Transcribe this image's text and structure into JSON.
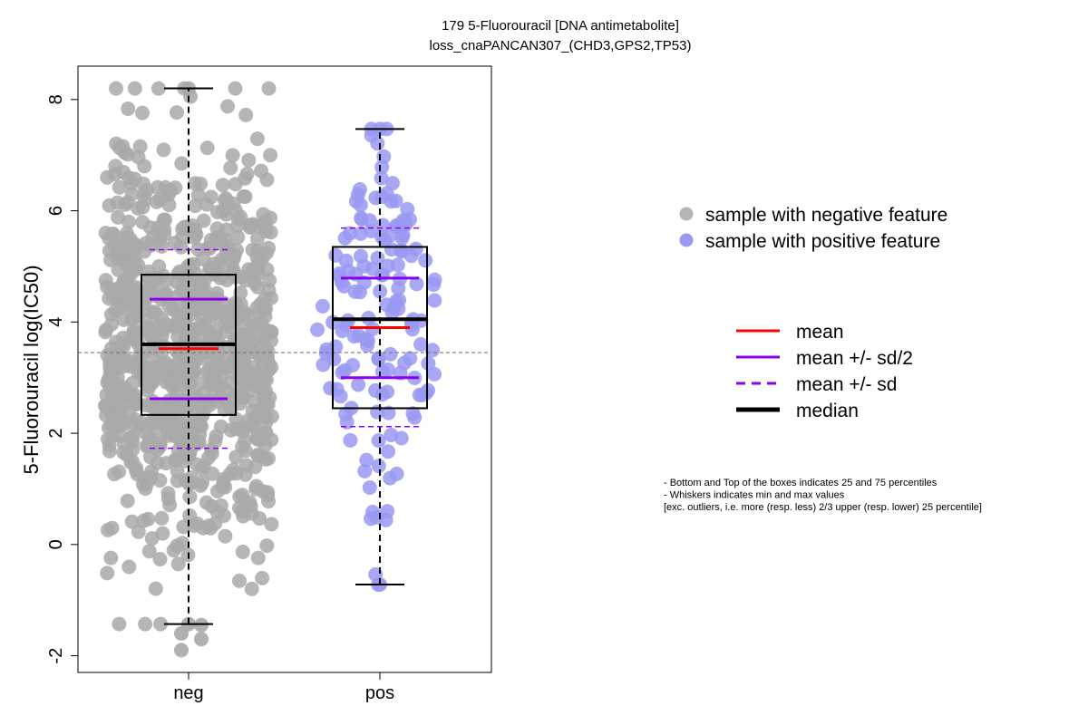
{
  "chart_data": {
    "type": "boxplot-beeswarm",
    "title": "179 5-Fluorouracil [DNA antimetabolite]",
    "subtitle": "loss_cnaPANCAN307_(CHD3,GPS2,TP53)",
    "xlabel": "",
    "ylabel": "5-Fluorouracil log(IC50)",
    "categories": [
      "neg",
      "pos"
    ],
    "ylim": [
      -2.3,
      8.6
    ],
    "yticks": [
      -2,
      0,
      2,
      4,
      6,
      8
    ],
    "ytick_labels": [
      "-2",
      "0",
      "2",
      "4",
      "6",
      "8"
    ],
    "overall_mean": 3.45,
    "groups": [
      {
        "name": "neg",
        "point_color": "#a9a9a9",
        "box_q1": 2.33,
        "box_q3": 4.85,
        "median": 3.6,
        "mean": 3.52,
        "mean_plus_half_sd": 4.41,
        "mean_minus_half_sd": 2.62,
        "mean_plus_sd": 5.3,
        "mean_minus_sd": 1.73,
        "whisker_low": -1.43,
        "whisker_high": 8.2,
        "n_points": 900,
        "outliers": [
          -1.6,
          -1.7,
          -1.9,
          -1.45
        ]
      },
      {
        "name": "pos",
        "point_color": "#9999f2",
        "box_q1": 2.45,
        "box_q3": 5.35,
        "median": 4.05,
        "mean": 3.9,
        "mean_plus_half_sd": 4.79,
        "mean_minus_half_sd": 3.0,
        "mean_plus_sd": 5.69,
        "mean_minus_sd": 2.12,
        "whisker_low": -0.72,
        "whisker_high": 7.47,
        "n_points": 150,
        "outliers": []
      }
    ]
  },
  "legend_points": [
    {
      "label": "sample with negative feature",
      "color": "#b5b5b5"
    },
    {
      "label": "sample with positive feature",
      "color": "#9999f2"
    }
  ],
  "legend_lines": [
    {
      "label": "mean",
      "color": "#ff0000",
      "style": "solid",
      "weight": "normal"
    },
    {
      "label": "mean +/- sd/2",
      "color": "#8b00ee",
      "style": "solid",
      "weight": "normal"
    },
    {
      "label": "mean +/- sd",
      "color": "#8b00ee",
      "style": "dashed",
      "weight": "normal"
    },
    {
      "label": "median",
      "color": "#000000",
      "style": "solid",
      "weight": "bold"
    }
  ],
  "notes": [
    "- Bottom and Top of the boxes indicates 25 and 75 percentiles",
    "- Whiskers indicates min and max values",
    "[exc. outliers, i.e. more (resp. less) 2/3 upper (resp. lower) 25 percentile]"
  ]
}
